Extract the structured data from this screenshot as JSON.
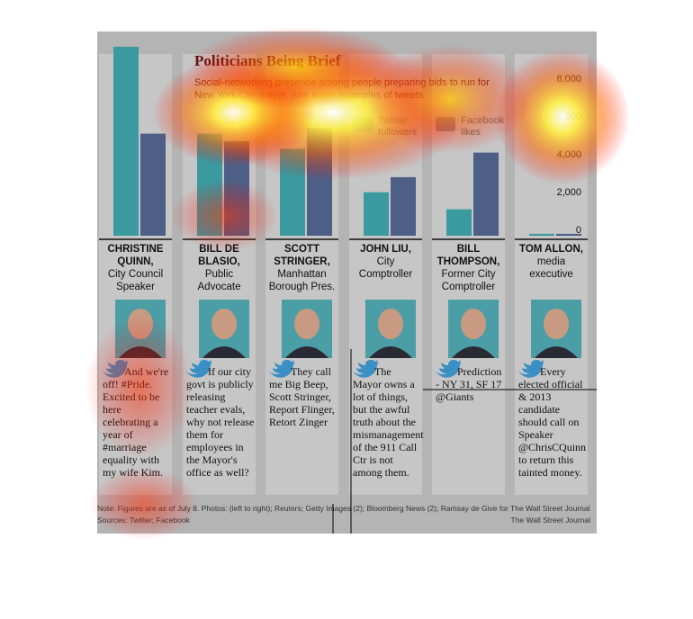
{
  "chart_data": {
    "type": "bar",
    "title": "Politicians Being Brief",
    "subtitle": "Social-networking presence among people preparing bids to run for New York City mayor, with some examples of tweets",
    "categories": [
      "CHRISTINE QUINN,",
      "BILL DE BLASIO,",
      "SCOTT STRINGER,",
      "JOHN LIU,",
      "BILL THOMPSON,",
      "TOM ALLON,"
    ],
    "roles": [
      "City Council Speaker",
      "Public Advocate",
      "Manhattan Borough Pres.",
      "City Comptroller",
      "Former City Comptroller",
      "media executive"
    ],
    "tweets": [
      "And we're off! #Pride. Excited to be here celebrating a year of #marriage equality with my wife Kim.",
      "If our city govt is publicly releasing teacher evals, why not release them for employees in the Mayor's office as well?",
      "They call me Big Beep, Scott Stringer, Report Flinger, Retort Zinger",
      "The Mayor owns a lot of things, but the awful truth about the mismanagement of the 911 Call Ctr is not among them.",
      "Prediction - NY 31, SF 17 @Giants",
      "Every elected official & 2013 candidate should call on Speaker @ChrisCQuinn to return this tainted money."
    ],
    "series": [
      {
        "name": "Twitter followers",
        "color": "#3a9aa0",
        "values": [
          10000,
          5400,
          4600,
          2300,
          1400,
          100
        ]
      },
      {
        "name": "Facebook likes",
        "color": "#4d5f86",
        "values": [
          5400,
          5000,
          5700,
          3100,
          4400,
          100
        ]
      }
    ],
    "ylim": [
      0,
      10000
    ],
    "yticks": [
      0,
      {
        "value": 2000,
        "label": "2,000"
      },
      {
        "value": 4000,
        "label": "4,000"
      },
      {
        "value": 6000,
        "label": "6,000"
      },
      {
        "value": 8000,
        "label": "8,000"
      }
    ]
  },
  "note": "Note: Figures are as of July 8.  Photos: (left to right); Reuters; Getty Images (2); Bloomberg News (2); Ramsay de Give for The Wall Street Journal",
  "sources": "Sources: Twitter; Facebook",
  "credit": "The Wall Street Journal"
}
